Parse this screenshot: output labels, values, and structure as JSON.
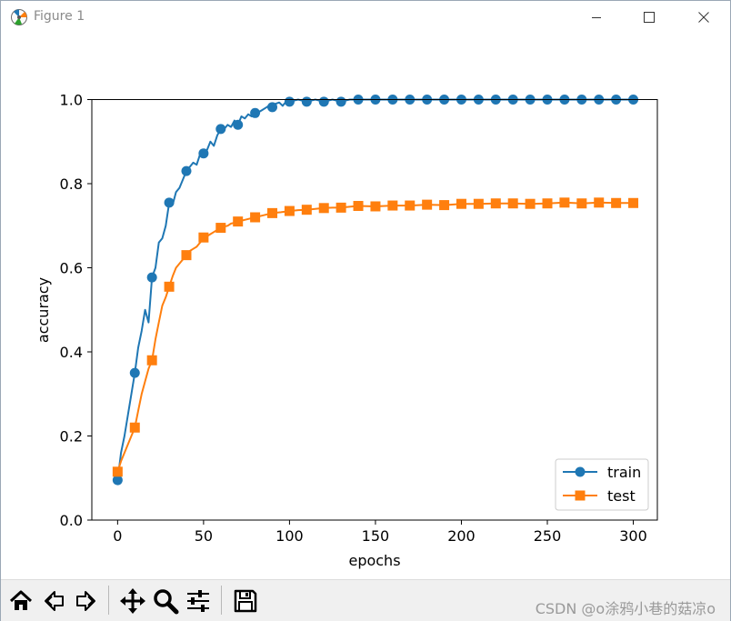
{
  "window": {
    "title": "Figure 1",
    "icons": {
      "app": "matplotlib-figure-icon",
      "minimize": "minimize-icon",
      "maximize": "maximize-icon",
      "close": "close-icon"
    }
  },
  "toolbar": {
    "buttons": [
      {
        "name": "home-button",
        "icon": "home-icon"
      },
      {
        "name": "back-button",
        "icon": "back-arrow-icon"
      },
      {
        "name": "forward-button",
        "icon": "forward-arrow-icon"
      },
      {
        "name": "pan-button",
        "icon": "move-icon"
      },
      {
        "name": "zoom-button",
        "icon": "zoom-icon"
      },
      {
        "name": "subplots-button",
        "icon": "sliders-icon"
      },
      {
        "name": "save-button",
        "icon": "save-icon"
      }
    ],
    "watermark": "CSDN @o涂鸦小巷的菇凉o"
  },
  "chart_data": {
    "type": "line",
    "title": "",
    "xlabel": "epochs",
    "ylabel": "accuracy",
    "xlim": [
      -15,
      314
    ],
    "ylim": [
      0.0,
      1.0
    ],
    "xticks": [
      0,
      50,
      100,
      150,
      200,
      250,
      300
    ],
    "yticks": [
      0.0,
      0.2,
      0.4,
      0.6,
      0.8,
      1.0
    ],
    "ytick_labels": [
      "0.0",
      "0.2",
      "0.4",
      "0.6",
      "0.8",
      "1.0"
    ],
    "grid": false,
    "legend": {
      "position": "lower-right"
    },
    "colors": {
      "train": "#1f77b4",
      "test": "#ff7f0e"
    },
    "series": [
      {
        "name": "train",
        "marker": "circle",
        "markevery": 10,
        "x": [
          0,
          2,
          4,
          6,
          8,
          10,
          12,
          14,
          16,
          18,
          20,
          22,
          24,
          26,
          28,
          30,
          32,
          34,
          36,
          38,
          40,
          42,
          44,
          46,
          48,
          50,
          52,
          54,
          56,
          58,
          60,
          62,
          64,
          66,
          68,
          70,
          72,
          74,
          76,
          78,
          80,
          82,
          84,
          86,
          88,
          90,
          92,
          94,
          96,
          98,
          100,
          105,
          110,
          115,
          120,
          125,
          130,
          135,
          140,
          150,
          160,
          170,
          180,
          190,
          200,
          210,
          220,
          230,
          240,
          250,
          260,
          270,
          280,
          290,
          300
        ],
        "y": [
          0.095,
          0.16,
          0.2,
          0.25,
          0.3,
          0.35,
          0.41,
          0.45,
          0.5,
          0.47,
          0.577,
          0.6,
          0.66,
          0.67,
          0.7,
          0.755,
          0.75,
          0.78,
          0.79,
          0.81,
          0.83,
          0.84,
          0.85,
          0.845,
          0.87,
          0.872,
          0.88,
          0.9,
          0.89,
          0.915,
          0.93,
          0.93,
          0.94,
          0.935,
          0.95,
          0.94,
          0.96,
          0.955,
          0.965,
          0.96,
          0.968,
          0.97,
          0.975,
          0.98,
          0.985,
          0.982,
          0.99,
          0.993,
          0.985,
          0.995,
          0.995,
          1.0,
          0.995,
          1.0,
          0.995,
          1.0,
          0.995,
          1.0,
          1.0,
          1.0,
          1.0,
          1.0,
          1.0,
          1.0,
          1.0,
          1.0,
          1.0,
          1.0,
          1.0,
          1.0,
          1.0,
          1.0,
          1.0,
          1.0,
          1.0
        ]
      },
      {
        "name": "test",
        "marker": "square",
        "markevery": 10,
        "x": [
          0,
          2,
          4,
          6,
          8,
          10,
          12,
          14,
          16,
          18,
          20,
          22,
          24,
          26,
          28,
          30,
          32,
          34,
          36,
          38,
          40,
          42,
          44,
          46,
          48,
          50,
          52,
          54,
          56,
          58,
          60,
          62,
          64,
          66,
          68,
          70,
          75,
          80,
          85,
          90,
          95,
          100,
          105,
          110,
          115,
          120,
          125,
          130,
          135,
          140,
          150,
          160,
          170,
          180,
          190,
          200,
          210,
          220,
          230,
          240,
          250,
          260,
          270,
          280,
          290,
          300
        ],
        "y": [
          0.115,
          0.14,
          0.16,
          0.18,
          0.2,
          0.22,
          0.26,
          0.3,
          0.33,
          0.36,
          0.38,
          0.43,
          0.47,
          0.51,
          0.53,
          0.555,
          0.58,
          0.6,
          0.61,
          0.62,
          0.63,
          0.64,
          0.645,
          0.65,
          0.66,
          0.672,
          0.675,
          0.68,
          0.685,
          0.69,
          0.695,
          0.698,
          0.7,
          0.705,
          0.707,
          0.71,
          0.715,
          0.72,
          0.725,
          0.73,
          0.732,
          0.735,
          0.737,
          0.738,
          0.74,
          0.742,
          0.743,
          0.743,
          0.745,
          0.747,
          0.746,
          0.748,
          0.748,
          0.75,
          0.749,
          0.752,
          0.752,
          0.753,
          0.753,
          0.752,
          0.753,
          0.755,
          0.753,
          0.755,
          0.754,
          0.754
        ]
      }
    ]
  }
}
